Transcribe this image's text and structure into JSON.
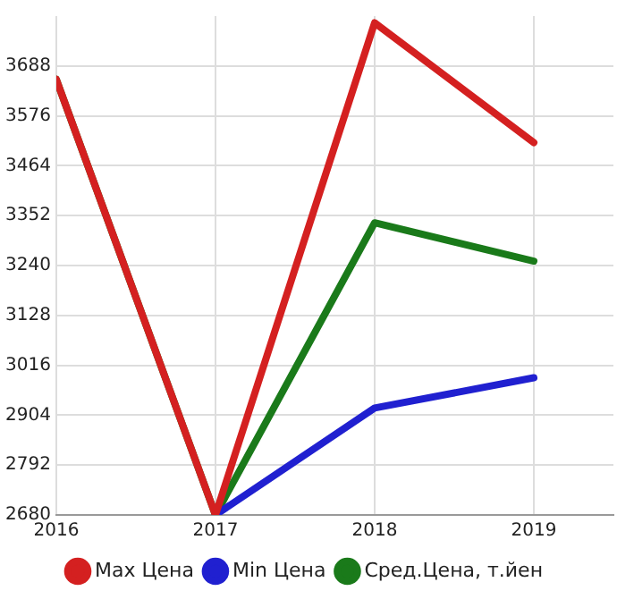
{
  "chart_data": {
    "type": "line",
    "x": [
      2016,
      2017,
      2018,
      2019
    ],
    "xlim": [
      2016,
      2019.5
    ],
    "xticks": [
      2016,
      2017,
      2018,
      2019
    ],
    "ylim": [
      2680,
      3800
    ],
    "yticks": [
      2680,
      2792,
      2904,
      3016,
      3128,
      3240,
      3352,
      3464,
      3576,
      3688
    ],
    "grid": true,
    "legend": "bottom",
    "marker": "none",
    "line_style": "solid",
    "series": [
      {
        "name": "Max Цена",
        "color": "#d42020",
        "values": [
          3658,
          2680,
          3785,
          3516
        ]
      },
      {
        "name": "Min Цена",
        "color": "#2020d0",
        "values": [
          null,
          2680,
          2920,
          2988
        ]
      },
      {
        "name": "Сред.Цена, т.йен",
        "color": "#1a7a1a",
        "values": [
          3658,
          2680,
          3336,
          3250
        ]
      }
    ]
  }
}
